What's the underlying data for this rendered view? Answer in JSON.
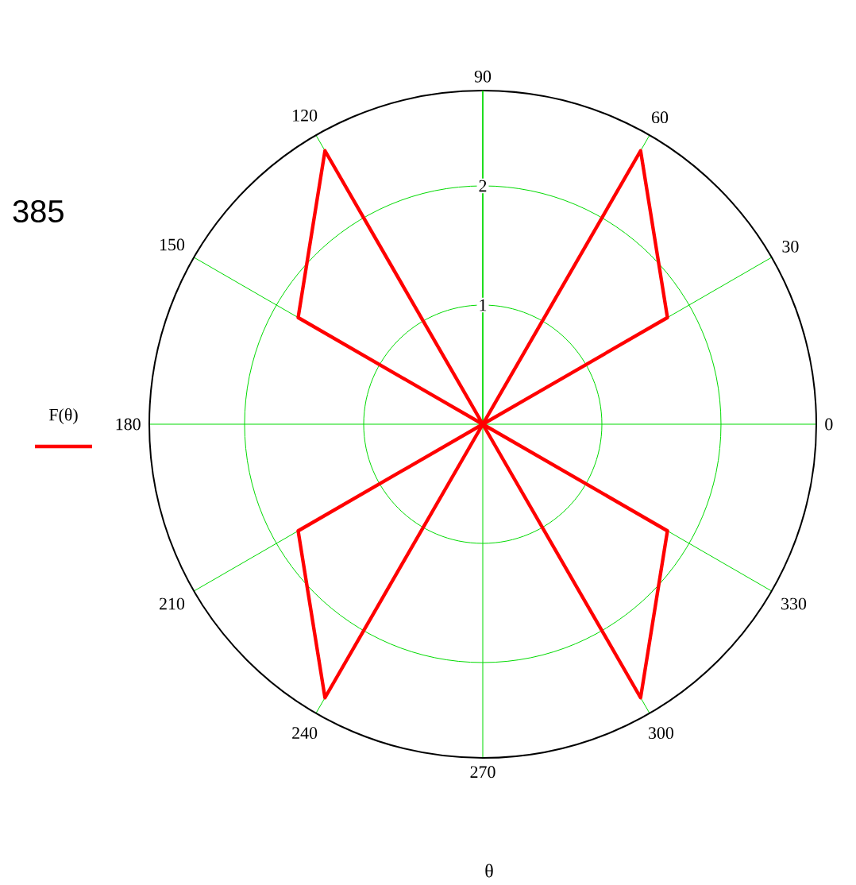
{
  "chart_data": {
    "type": "radar",
    "categories": [
      "90",
      "60",
      "30",
      "0",
      "330",
      "300",
      "270",
      "240",
      "210",
      "180",
      "150",
      "120"
    ],
    "series": [
      {
        "name": "F(θ)",
        "color": "#ff0000",
        "values": [
          0,
          2.65,
          1.79,
          0,
          1.79,
          2.65,
          0,
          2.65,
          1.79,
          0,
          1.79,
          2.65
        ]
      }
    ],
    "ylim": [
      0,
      2.8
    ],
    "yticks": [
      1,
      2
    ],
    "grid": true,
    "legend": "left",
    "xlabel": "θ",
    "annotations": [
      "385"
    ]
  }
}
